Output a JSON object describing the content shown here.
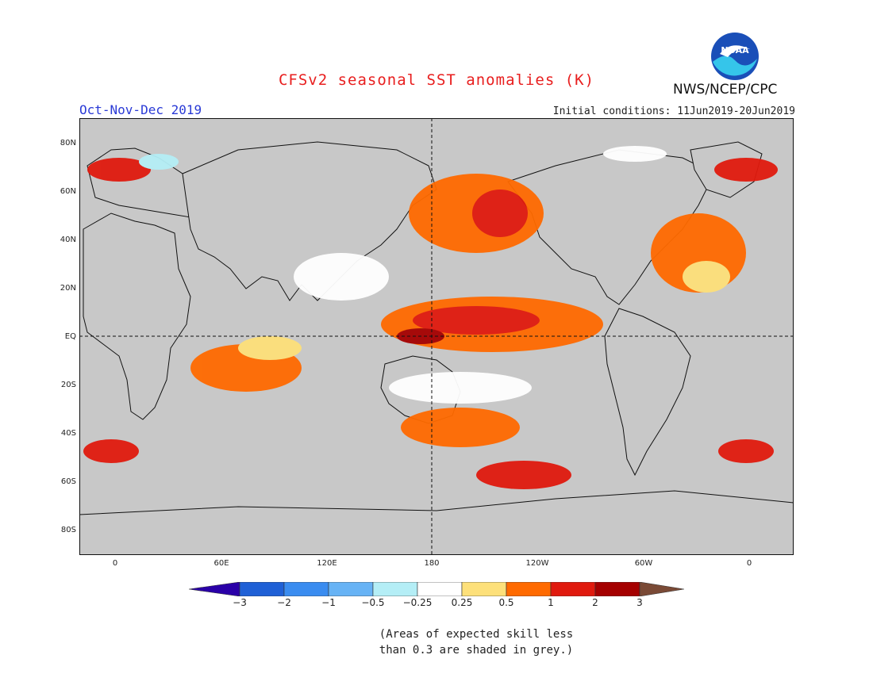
{
  "title": "CFSv2 seasonal SST anomalies (K)",
  "season": "Oct-Nov-Dec 2019",
  "initial_conditions": "Initial conditions: 11Jun2019-20Jun2019",
  "agency": "NWS/NCEP/CPC",
  "logo_text": "NOAA",
  "lat_labels": [
    "80N",
    "60N",
    "40N",
    "20N",
    "EQ",
    "20S",
    "40S",
    "60S",
    "80S"
  ],
  "lon_labels": [
    "0",
    "60E",
    "120E",
    "180",
    "120W",
    "60W",
    "0"
  ],
  "colorbar": {
    "labels": [
      "−3",
      "−2",
      "−1",
      "−0.5",
      "−0.25",
      "0.25",
      "0.5",
      "1",
      "2",
      "3"
    ],
    "colors": [
      "#2a00a8",
      "#1f60d6",
      "#3a8cf0",
      "#67b3f5",
      "#b4eef6",
      "#ffffff",
      "#fde07a",
      "#ff6a00",
      "#e01a0e",
      "#a50000",
      "#7a4a36"
    ]
  },
  "note_lines": [
    "(Areas of expected skill less",
    "than 0.3 are shaded in grey.)"
  ]
}
